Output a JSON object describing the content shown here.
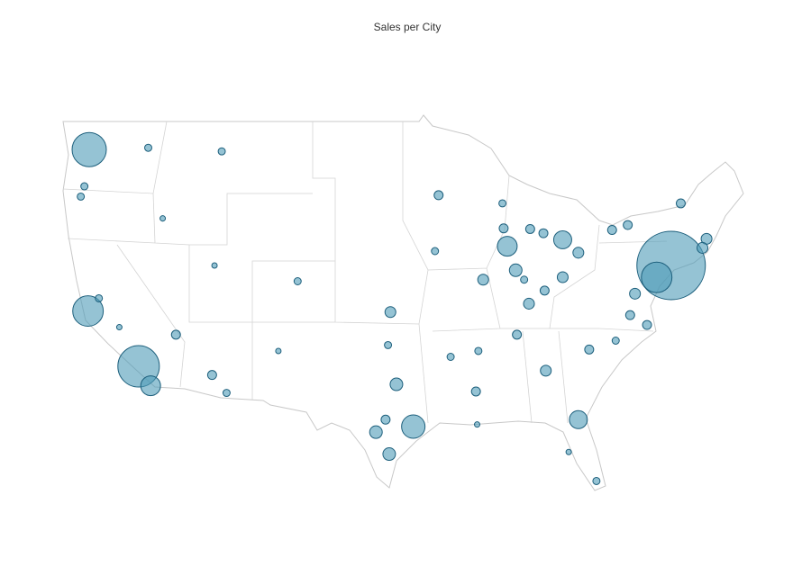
{
  "chart_data": {
    "type": "bubble-map",
    "title": "Sales per City",
    "color": "#4f9bb8",
    "stroke": "#1d5f7c",
    "lon": [
      -74.0,
      -118.2,
      -122.3,
      -122.4,
      -75.2,
      -95.4,
      -117.2,
      -87.6,
      -83.0,
      -81.7,
      -77.0,
      -96.8,
      -98.5,
      -97.7,
      -112.1,
      -110.9,
      -105.0,
      -111.9,
      -115.1,
      -122.7,
      -84.4,
      -83.0,
      -81.7,
      -78.9,
      -77.6,
      -71.06,
      -71.4,
      -73.2,
      -86.9,
      -85.8,
      -86.8,
      -90.0,
      -97.5,
      -97.3,
      -93.3,
      -87.9,
      -80.2,
      -82.5,
      -90.1,
      -90.2,
      -80.8,
      -78.6,
      -77.4,
      -76.0,
      -121.5,
      -119.8,
      -106.6,
      -97.4,
      -84.5,
      -86.2,
      -89.6,
      -111.3,
      -116.2,
      -93.6,
      -92.3,
      -85.7,
      -88.0,
      -84.6,
      -123.0,
      -117.4
    ],
    "lat": [
      40.7,
      34.05,
      47.6,
      37.77,
      39.95,
      29.8,
      32.7,
      41.9,
      42.3,
      30.3,
      38.9,
      32.8,
      29.4,
      30.3,
      33.45,
      32.2,
      39.7,
      40.7,
      36.2,
      45.5,
      33.75,
      39.96,
      41.5,
      42.9,
      43.2,
      42.36,
      41.8,
      44.5,
      40.4,
      38.25,
      36.2,
      35.1,
      35.5,
      37.7,
      44.98,
      43.0,
      25.8,
      27.95,
      29.95,
      32.3,
      35.2,
      35.8,
      37.5,
      36.85,
      38.6,
      36.7,
      35.1,
      27.8,
      39.1,
      39.8,
      39.8,
      47.5,
      43.6,
      41.6,
      34.7,
      42.96,
      44.5,
      42.7,
      44.9,
      47.7
    ],
    "values": [
      256000,
      94000,
      64000,
      51000,
      51000,
      30000,
      21400,
      21400,
      17700,
      17700,
      6400,
      8700,
      8700,
      4400,
      4400,
      2800,
      2800,
      1600,
      4400,
      2800,
      6400,
      6400,
      6400,
      4400,
      4400,
      6400,
      6400,
      4400,
      8700,
      6400,
      4400,
      2800,
      2800,
      6400,
      4400,
      4400,
      2800,
      1600,
      1600,
      4400,
      4400,
      2800,
      4400,
      4400,
      2800,
      1600,
      1600,
      8700,
      4400,
      2800,
      6400,
      2800,
      1600,
      2800,
      2800,
      4400,
      2800,
      4400,
      2800,
      2800
    ]
  }
}
